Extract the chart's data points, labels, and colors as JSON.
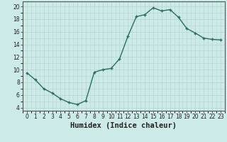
{
  "x": [
    0,
    1,
    2,
    3,
    4,
    5,
    6,
    7,
    8,
    9,
    10,
    11,
    12,
    13,
    14,
    15,
    16,
    17,
    18,
    19,
    20,
    21,
    22,
    23
  ],
  "y": [
    9.5,
    8.4,
    7.0,
    6.3,
    5.4,
    4.8,
    4.5,
    5.1,
    9.6,
    10.0,
    10.2,
    11.7,
    15.3,
    18.4,
    18.7,
    19.8,
    19.3,
    19.5,
    18.3,
    16.5,
    15.8,
    15.0,
    14.8,
    14.7
  ],
  "line_color": "#2a6e62",
  "marker": "+",
  "background_color": "#cceae8",
  "grid_color": "#b8d8d4",
  "xlabel": "Humidex (Indice chaleur)",
  "xlim": [
    -0.5,
    23.5
  ],
  "ylim": [
    3.5,
    20.8
  ],
  "yticks": [
    4,
    6,
    8,
    10,
    12,
    14,
    16,
    18,
    20
  ],
  "xticks": [
    0,
    1,
    2,
    3,
    4,
    5,
    6,
    7,
    8,
    9,
    10,
    11,
    12,
    13,
    14,
    15,
    16,
    17,
    18,
    19,
    20,
    21,
    22,
    23
  ],
  "tick_fontsize": 5.5,
  "xlabel_fontsize": 7.5,
  "linewidth": 1.0,
  "markersize": 3.5
}
